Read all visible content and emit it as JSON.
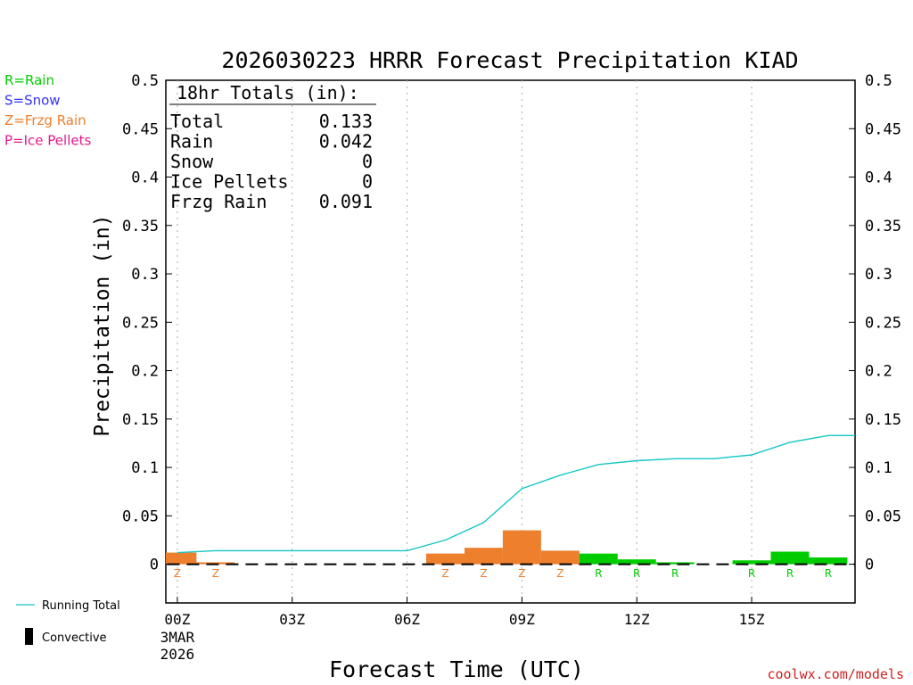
{
  "chart_data": {
    "type": "bar",
    "title": "2026030223 HRRR Forecast Precipitation KIAD",
    "xlabel": "Forecast Time (UTC)",
    "ylabel": "Precipitation (in)",
    "ylim": [
      -0.04,
      0.5
    ],
    "xlim": [
      -0.3,
      17.7
    ],
    "y_ticks": [
      "0.5",
      "0.45",
      "0.4",
      "0.35",
      "0.3",
      "0.25",
      "0.2",
      "0.15",
      "0.1",
      "0.05",
      "0"
    ],
    "y_tick_values": [
      0.5,
      0.45,
      0.4,
      0.35,
      0.3,
      0.25,
      0.2,
      0.15,
      0.1,
      0.05,
      0
    ],
    "x_ticks": [
      {
        "hour": 0,
        "label": "00Z",
        "sub1": "3MAR",
        "sub2": "2026"
      },
      {
        "hour": 3,
        "label": "03Z",
        "sub1": "",
        "sub2": ""
      },
      {
        "hour": 6,
        "label": "06Z",
        "sub1": "",
        "sub2": ""
      },
      {
        "hour": 9,
        "label": "09Z",
        "sub1": "",
        "sub2": ""
      },
      {
        "hour": 12,
        "label": "12Z",
        "sub1": "",
        "sub2": ""
      },
      {
        "hour": 15,
        "label": "15Z",
        "sub1": "",
        "sub2": ""
      }
    ],
    "bars": [
      {
        "hour": 0,
        "value": 0.012,
        "type": "Z"
      },
      {
        "hour": 1,
        "value": 0.002,
        "type": "Z"
      },
      {
        "hour": 7,
        "value": 0.011,
        "type": "Z"
      },
      {
        "hour": 8,
        "value": 0.017,
        "type": "Z"
      },
      {
        "hour": 9,
        "value": 0.035,
        "type": "Z"
      },
      {
        "hour": 10,
        "value": 0.014,
        "type": "Z"
      },
      {
        "hour": 11,
        "value": 0.011,
        "type": "R"
      },
      {
        "hour": 12,
        "value": 0.005,
        "type": "R"
      },
      {
        "hour": 13,
        "value": 0.002,
        "type": "R"
      },
      {
        "hour": 15,
        "value": 0.004,
        "type": "R"
      },
      {
        "hour": 16,
        "value": 0.013,
        "type": "R"
      },
      {
        "hour": 17,
        "value": 0.007,
        "type": "R"
      }
    ],
    "running_total": {
      "x": [
        0,
        1,
        2,
        3,
        4,
        5,
        6,
        7,
        8,
        9,
        10,
        11,
        12,
        13,
        14,
        15,
        16,
        17,
        17.7
      ],
      "y": [
        0.012,
        0.014,
        0.014,
        0.014,
        0.014,
        0.014,
        0.014,
        0.025,
        0.043,
        0.078,
        0.092,
        0.103,
        0.107,
        0.109,
        0.109,
        0.113,
        0.126,
        0.133,
        0.133
      ]
    },
    "colors": {
      "R": "#00cc00",
      "S": "#3333ff",
      "Z": "#ee7f2d",
      "P": "#e6198c",
      "running_total": "#17c6c6",
      "convective": "#000000",
      "grid": "#aaaaaa"
    },
    "type_legend": [
      {
        "code": "R",
        "text": "R=Rain"
      },
      {
        "code": "S",
        "text": "S=Snow"
      },
      {
        "code": "Z",
        "text": "Z=Frzg Rain"
      },
      {
        "code": "P",
        "text": "P=Ice Pellets"
      }
    ],
    "totals_box": {
      "heading": "18hr Totals (in):",
      "rows": [
        {
          "label": "Total",
          "value": "0.133"
        },
        {
          "label": "Rain",
          "value": "0.042"
        },
        {
          "label": "Snow",
          "value": "0"
        },
        {
          "label": "Ice Pellets",
          "value": "0"
        },
        {
          "label": "Frzg Rain",
          "value": "0.091"
        }
      ]
    },
    "series_legend": {
      "running_total": "Running Total",
      "convective": "Convective"
    },
    "credit": "coolwx.com/models"
  }
}
